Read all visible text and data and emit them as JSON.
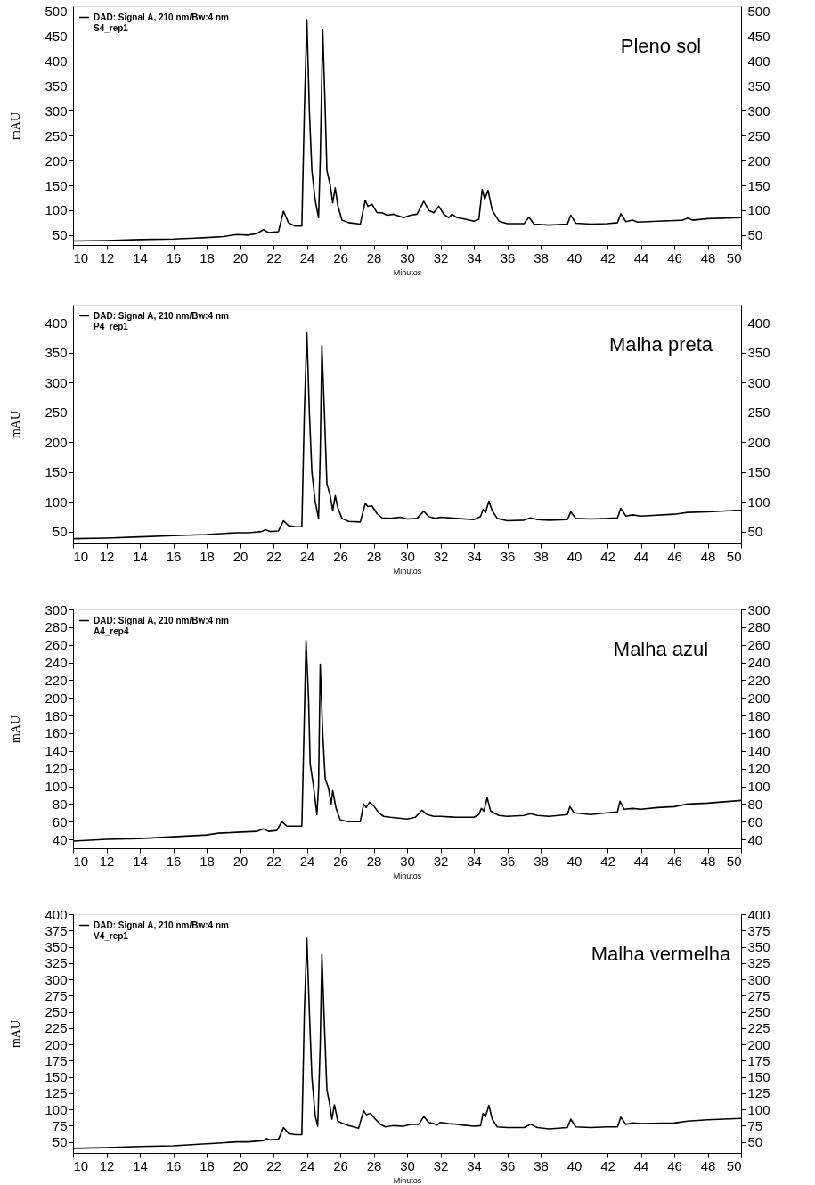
{
  "chart_data": [
    {
      "type": "line",
      "title": "Pleno sol",
      "xlabel": "Minutos",
      "ylabel": "mAU",
      "legend": "top left",
      "grid": false,
      "marker": "none",
      "line_style": "solid",
      "xlim": [
        10,
        50
      ],
      "xticks": [
        10,
        12,
        14,
        16,
        18,
        20,
        22,
        24,
        26,
        28,
        30,
        32,
        34,
        36,
        38,
        40,
        42,
        44,
        46,
        48,
        50
      ],
      "ylim": [
        30,
        510
      ],
      "yticks": [
        50,
        100,
        150,
        200,
        250,
        300,
        350,
        400,
        450,
        500
      ],
      "y2lim": [
        30,
        510
      ],
      "y2ticks": [
        50,
        100,
        150,
        200,
        250,
        300,
        350,
        400,
        450,
        500
      ],
      "series": [
        {
          "name": "DAD: Signal A, 210 nm/Bw:4 nm\nS4_rep1",
          "color": "#000000",
          "x": [
            10,
            12,
            14,
            16,
            17.3,
            18,
            19,
            19.8,
            20.5,
            21,
            21.4,
            21.7,
            22.3,
            22.6,
            22.9,
            23.3,
            23.7,
            23.85,
            24.0,
            24.15,
            24.3,
            24.5,
            24.7,
            24.8,
            24.95,
            25.1,
            25.2,
            25.4,
            25.55,
            25.7,
            25.85,
            26.1,
            26.5,
            27.2,
            27.5,
            27.65,
            27.9,
            28.2,
            28.5,
            28.8,
            29.2,
            29.8,
            30.2,
            30.6,
            31.0,
            31.3,
            31.6,
            31.9,
            32.2,
            32.5,
            32.7,
            33,
            33.5,
            34,
            34.3,
            34.5,
            34.65,
            34.85,
            35.1,
            35.5,
            36,
            37,
            37.3,
            37.6,
            38.5,
            39.6,
            39.8,
            40.1,
            41,
            42,
            42.6,
            42.8,
            43.1,
            43.5,
            43.8,
            45,
            46.5,
            46.8,
            47.1,
            48,
            50
          ],
          "values": [
            38,
            39,
            41,
            42,
            44,
            45,
            47,
            51,
            50,
            53,
            61,
            55,
            57,
            98,
            75,
            68,
            68,
            300,
            483,
            300,
            180,
            120,
            85,
            200,
            463,
            300,
            180,
            150,
            115,
            145,
            110,
            80,
            75,
            72,
            120,
            108,
            112,
            95,
            95,
            90,
            92,
            85,
            90,
            92,
            118,
            100,
            95,
            108,
            92,
            85,
            92,
            85,
            82,
            78,
            82,
            142,
            122,
            140,
            100,
            78,
            73,
            73,
            86,
            72,
            70,
            72,
            90,
            74,
            72,
            73,
            75,
            93,
            77,
            80,
            76,
            78,
            80,
            84,
            80,
            83,
            85
          ]
        }
      ]
    },
    {
      "type": "line",
      "title": "Malha preta",
      "xlabel": "Minutos",
      "ylabel": "mAU",
      "legend": "top left",
      "grid": false,
      "marker": "none",
      "line_style": "solid",
      "xlim": [
        10,
        50
      ],
      "xticks": [
        10,
        12,
        14,
        16,
        18,
        20,
        22,
        24,
        26,
        28,
        30,
        32,
        34,
        36,
        38,
        40,
        42,
        44,
        46,
        48,
        50
      ],
      "ylim": [
        30,
        430
      ],
      "yticks": [
        50,
        100,
        150,
        200,
        250,
        300,
        350,
        400
      ],
      "y2lim": [
        30,
        430
      ],
      "y2ticks": [
        50,
        100,
        150,
        200,
        250,
        300,
        350,
        400
      ],
      "series": [
        {
          "name": "DAD: Signal A, 210 nm/Bw:4 nm\nP4_rep1",
          "color": "#000000",
          "x": [
            10,
            12,
            14,
            16,
            18,
            19.8,
            20.5,
            21.3,
            21.5,
            21.8,
            22.3,
            22.6,
            22.9,
            23.3,
            23.7,
            23.85,
            24.0,
            24.15,
            24.3,
            24.5,
            24.7,
            24.8,
            24.9,
            25.05,
            25.2,
            25.4,
            25.55,
            25.7,
            25.85,
            26.1,
            26.5,
            27.2,
            27.5,
            27.65,
            27.9,
            28.2,
            28.5,
            29,
            29.6,
            30,
            30.6,
            31.0,
            31.3,
            31.7,
            32,
            33,
            34,
            34.4,
            34.55,
            34.7,
            34.9,
            35.1,
            35.4,
            36,
            37,
            37.4,
            37.8,
            38.5,
            39.6,
            39.8,
            40.1,
            41,
            42,
            42.6,
            42.8,
            43.1,
            43.5,
            44,
            46,
            46.8,
            48,
            50
          ],
          "values": [
            38,
            39,
            41,
            43,
            45,
            48,
            48,
            50,
            53,
            50,
            51,
            68,
            60,
            58,
            58,
            250,
            383,
            250,
            150,
            100,
            72,
            180,
            362,
            250,
            130,
            110,
            85,
            110,
            90,
            72,
            67,
            66,
            97,
            92,
            93,
            80,
            73,
            72,
            74,
            71,
            72,
            84,
            75,
            72,
            74,
            72,
            70,
            75,
            87,
            82,
            101,
            85,
            72,
            68,
            69,
            73,
            70,
            69,
            70,
            83,
            72,
            71,
            72,
            73,
            89,
            76,
            78,
            76,
            79,
            82,
            83,
            86
          ]
        }
      ]
    },
    {
      "type": "line",
      "title": "Malha azul",
      "xlabel": "Minutos",
      "ylabel": "mAU",
      "legend": "top left",
      "grid": false,
      "marker": "none",
      "line_style": "solid",
      "xlim": [
        10,
        50
      ],
      "xticks": [
        10,
        12,
        14,
        16,
        18,
        20,
        22,
        24,
        26,
        28,
        30,
        32,
        34,
        36,
        38,
        40,
        42,
        44,
        46,
        48,
        50
      ],
      "ylim": [
        30,
        300
      ],
      "yticks": [
        40,
        60,
        80,
        100,
        120,
        140,
        160,
        180,
        200,
        220,
        240,
        260,
        280,
        300
      ],
      "y2lim": [
        30,
        300
      ],
      "y2ticks": [
        40,
        60,
        80,
        100,
        120,
        140,
        160,
        180,
        200,
        220,
        240,
        260,
        280,
        300
      ],
      "series": [
        {
          "name": "DAD: Signal A, 210 nm/Bw:4 nm\nA4_rep4",
          "color": "#000000",
          "x": [
            10,
            12,
            14,
            16,
            18,
            18.7,
            19.8,
            21,
            21.4,
            21.7,
            22.2,
            22.5,
            22.8,
            23.3,
            23.7,
            23.85,
            23.95,
            24.1,
            24.2,
            24.4,
            24.6,
            24.7,
            24.8,
            24.95,
            25.1,
            25.3,
            25.45,
            25.55,
            25.75,
            26,
            26.5,
            27.2,
            27.4,
            27.55,
            27.75,
            28,
            28.3,
            28.6,
            29,
            29.5,
            30,
            30.5,
            30.9,
            31.2,
            31.6,
            32,
            33,
            34,
            34.3,
            34.45,
            34.6,
            34.8,
            35,
            35.5,
            36,
            37,
            37.4,
            37.8,
            38.5,
            39.6,
            39.75,
            40,
            41,
            42,
            42.6,
            42.75,
            43,
            43.5,
            44,
            45,
            46,
            46.8,
            48,
            50
          ],
          "values": [
            38,
            40,
            41,
            43,
            45,
            47,
            48,
            49,
            52,
            49,
            50,
            60,
            55,
            55,
            55,
            180,
            265,
            200,
            125,
            100,
            68,
            100,
            238,
            160,
            108,
            98,
            80,
            95,
            75,
            62,
            60,
            60,
            80,
            76,
            82,
            78,
            70,
            66,
            65,
            64,
            63,
            65,
            73,
            68,
            66,
            66,
            65,
            65,
            68,
            75,
            72,
            87,
            72,
            67,
            66,
            67,
            69,
            67,
            66,
            68,
            77,
            70,
            68,
            70,
            71,
            83,
            74,
            75,
            74,
            76,
            77,
            80,
            81,
            84
          ]
        }
      ]
    },
    {
      "type": "line",
      "title": "Malha vermelha",
      "xlabel": "Minutos",
      "ylabel": "mAU",
      "legend": "top left",
      "grid": false,
      "marker": "none",
      "line_style": "solid",
      "xlim": [
        10,
        50
      ],
      "xticks": [
        10,
        12,
        14,
        16,
        18,
        20,
        22,
        24,
        26,
        28,
        30,
        32,
        34,
        36,
        38,
        40,
        42,
        44,
        46,
        48,
        50
      ],
      "ylim": [
        33,
        400
      ],
      "yticks": [
        50,
        75,
        100,
        125,
        150,
        175,
        200,
        225,
        250,
        275,
        300,
        325,
        350,
        375,
        400
      ],
      "y2lim": [
        33,
        400
      ],
      "y2ticks": [
        50,
        75,
        100,
        125,
        150,
        175,
        200,
        225,
        250,
        275,
        300,
        325,
        350,
        375,
        400
      ],
      "series": [
        {
          "name": "DAD: Signal A, 210 nm/Bw:4 nm\nV4_rep1",
          "color": "#000000",
          "x": [
            10,
            12,
            14,
            16,
            17.3,
            18.7,
            19.8,
            20.5,
            21.4,
            21.6,
            21.8,
            22.3,
            22.6,
            22.9,
            23.3,
            23.7,
            23.85,
            24.0,
            24.15,
            24.3,
            24.5,
            24.65,
            24.8,
            24.9,
            25.05,
            25.2,
            25.35,
            25.5,
            25.65,
            25.85,
            26.1,
            26.5,
            27.1,
            27.4,
            27.55,
            27.8,
            28.1,
            28.4,
            28.7,
            29.2,
            29.8,
            30.2,
            30.7,
            31.0,
            31.3,
            31.6,
            31.8,
            32,
            32.5,
            33,
            33.3,
            34,
            34.4,
            34.55,
            34.7,
            34.9,
            35.1,
            35.4,
            36,
            37,
            37.4,
            37.8,
            38.5,
            39.6,
            39.8,
            40.1,
            41,
            42,
            42.6,
            42.8,
            43.1,
            43.5,
            44,
            46,
            46.8,
            48,
            50
          ],
          "values": [
            40,
            41,
            43,
            44,
            46,
            48,
            50,
            50,
            52,
            55,
            53,
            54,
            72,
            63,
            61,
            61,
            250,
            363,
            250,
            150,
            90,
            74,
            200,
            338,
            230,
            130,
            110,
            85,
            107,
            82,
            79,
            75,
            71,
            98,
            92,
            94,
            85,
            77,
            73,
            75,
            74,
            77,
            77,
            89,
            80,
            78,
            76,
            80,
            78,
            77,
            76,
            74,
            75,
            94,
            89,
            106,
            85,
            73,
            72,
            72,
            77,
            72,
            70,
            72,
            85,
            73,
            72,
            73,
            73,
            88,
            77,
            79,
            78,
            79,
            82,
            84,
            86
          ]
        }
      ]
    }
  ]
}
